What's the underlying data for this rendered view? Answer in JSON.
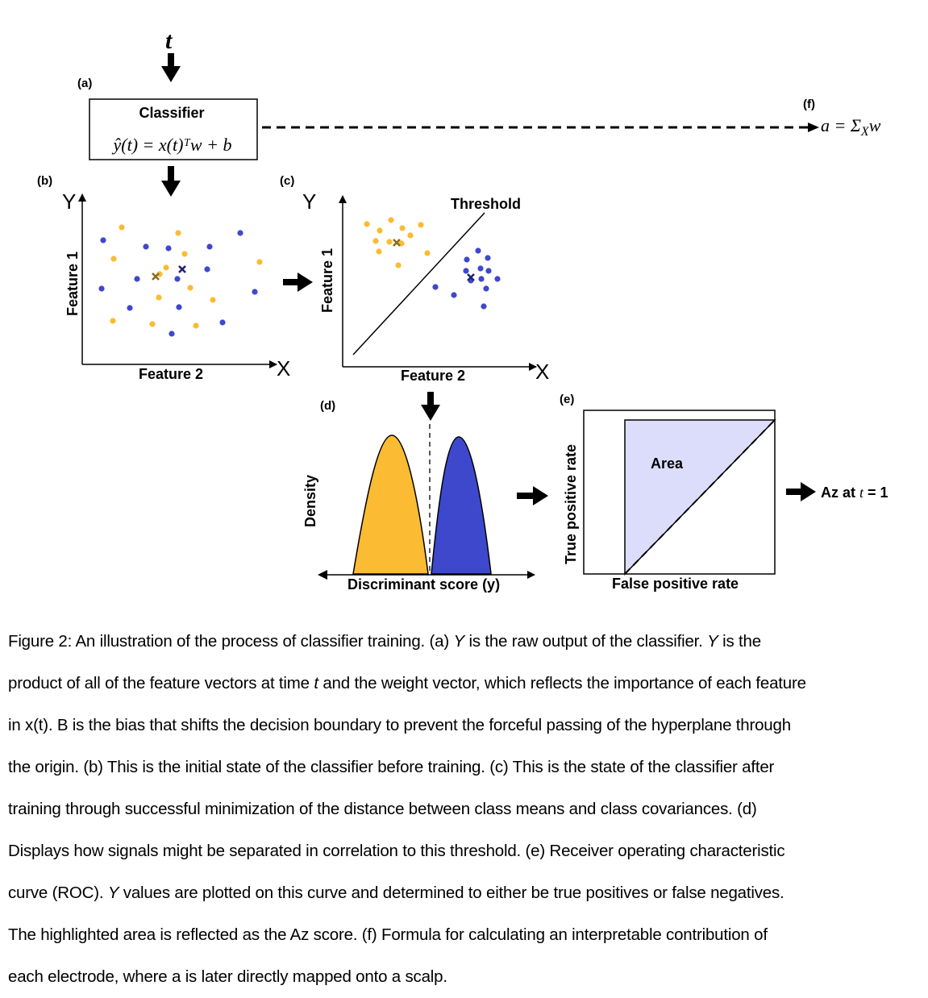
{
  "colors": {
    "orange": "#FBBB32",
    "blue": "#3E48CC",
    "roc_fill": "#DCDDFB",
    "cross_orange": "#8C6C1C",
    "cross_blue": "#1E2270"
  },
  "top": {
    "t_symbol": "t",
    "panel_a": "(a)",
    "panel_f": "(f)",
    "classifier_title": "Classifier",
    "classifier_formula": "ŷ(t) = x(t)ᵀw + b",
    "f_formula": "a = Σ",
    "f_sub": "X",
    "f_w": "w"
  },
  "panel_b": {
    "label": "(b)",
    "y_letter": "Y",
    "x_letter": "X",
    "y_title": "Feature 1",
    "x_title": "Feature 2"
  },
  "panel_c": {
    "label": "(c)",
    "y_letter": "Y",
    "x_letter": "X",
    "y_title": "Feature 1",
    "x_title": "Feature 2",
    "threshold": "Threshold"
  },
  "panel_d": {
    "label": "(d)",
    "y_title": "Density",
    "x_title": "Discriminant score (y)"
  },
  "panel_e": {
    "label": "(e)",
    "y_title": "True positive rate",
    "x_title": "False positive rate",
    "area": "Area",
    "result_prefix": "Az at ",
    "result_t": "t",
    "result_suffix": " = 1"
  },
  "caption": {
    "lines": [
      [
        "Figure 2: An illustration of the process of classifier training. (a) ",
        {
          "i": "Y"
        },
        " is the raw output of the classifier. ",
        {
          "i": "Y"
        },
        " is the"
      ],
      [
        "product of all of the feature vectors at time ",
        {
          "i": "t"
        },
        " and the weight vector, which reflects the importance of each feature"
      ],
      [
        "in x(t). B is the bias that shifts the decision boundary to prevent the forceful passing of the hyperplane through"
      ],
      [
        "the origin. (b) This is the initial state of the classifier before training. (c) This is the state of the classifier after"
      ],
      [
        "training through successful minimization of the distance between class means and class covariances. (d)"
      ],
      [
        "Displays how signals might be separated in correlation to this threshold. (e) Receiver operating characteristic"
      ],
      [
        "curve (ROC). ",
        {
          "i": "Y"
        },
        " values are plotted on this curve and determined to either be true positives or false negatives."
      ],
      [
        "The highlighted area is reflected as the Az score. (f) Formula for calculating an interpretable contribution of"
      ],
      [
        "each electrode, where a is later directly mapped onto a scalp."
      ]
    ]
  }
}
